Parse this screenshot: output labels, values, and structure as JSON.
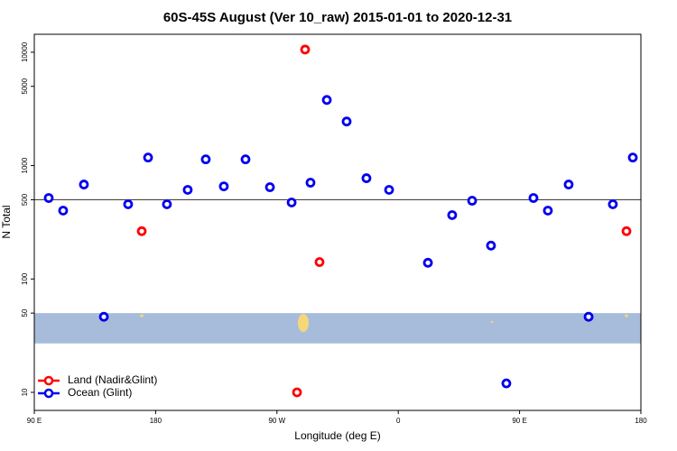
{
  "chart_data": {
    "type": "scatter",
    "title": "60S-45S August (Ver 10_raw)   2015-01-01 to 2020-12-31",
    "x_label": "Longitude (deg E)",
    "y_label": "N Total",
    "log_y": true,
    "xlim": [
      90,
      540
    ],
    "ylim": [
      6.93,
      14400
    ],
    "xticks": [
      {
        "value": 90,
        "label": "90 E"
      },
      {
        "value": 180,
        "label": "180"
      },
      {
        "value": 270,
        "label": "90 W"
      },
      {
        "value": 360,
        "label": "0"
      },
      {
        "value": 450,
        "label": "90 E"
      },
      {
        "value": 540,
        "label": "180"
      }
    ],
    "yticks": [
      10,
      50,
      100,
      500,
      1000,
      5000,
      10000
    ],
    "hline": 500,
    "band": {
      "from": 27,
      "to": 50,
      "color": "#a7bcdb"
    },
    "legend": "bottom-left",
    "series": [
      {
        "name": "Land (Nadir&Glint)",
        "color": "#ff0000",
        "x": [
          169.7,
          290.9,
          301.6,
          284.9,
          529.3
        ],
        "values": [
          264,
          10560,
          141,
          10,
          264
        ]
      },
      {
        "name": "Ocean (Glint)",
        "color": "#0000ee",
        "x": [
          100.7,
          111.4,
          126.8,
          141.6,
          159.6,
          174.4,
          188.4,
          203.8,
          217.2,
          230.6,
          246.7,
          264.8,
          280.9,
          294.9,
          307,
          321.7,
          336.4,
          353.2,
          382,
          400,
          414.8,
          428.8,
          440.2,
          460.3,
          471,
          486.4,
          501.2,
          519.2,
          534
        ],
        "values": [
          518,
          401,
          681,
          46.4,
          456,
          1178,
          456,
          611,
          1136,
          656,
          1136,
          645,
          473,
          707,
          3795,
          2449,
          774,
          611,
          139,
          366,
          490,
          197,
          12,
          518,
          401,
          681,
          46.4,
          456,
          1178
        ]
      }
    ]
  }
}
